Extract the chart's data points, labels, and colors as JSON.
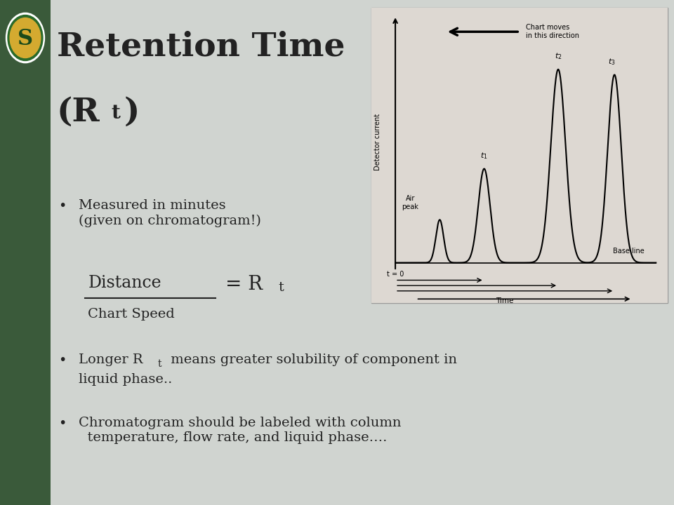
{
  "title_line1": "Retention Time",
  "title_line2_pre": "(R",
  "title_line2_sub": "t",
  "title_line2_post": ")",
  "left_bar_color": "#3a5a3a",
  "slide_bg": "#d0d4d0",
  "text_color": "#222222",
  "bullet1": "Measured in minutes\n(given on chromatogram!)",
  "formula_num": "Distance",
  "formula_den": "Chart Speed",
  "bullet2_pre": "Longer R",
  "bullet2_sub": "t",
  "bullet2_post": " means greater solubility of component in\n  liquid phase..",
  "bullet3": "Chromatogram should be labeled with column\n  temperature, flow rate, and liquid phase….",
  "chrom_bg": "#ddd8d2",
  "logo_bg": "#d4aa30",
  "logo_border": "#2a6a2a",
  "logo_letter": "#1a4a1a"
}
